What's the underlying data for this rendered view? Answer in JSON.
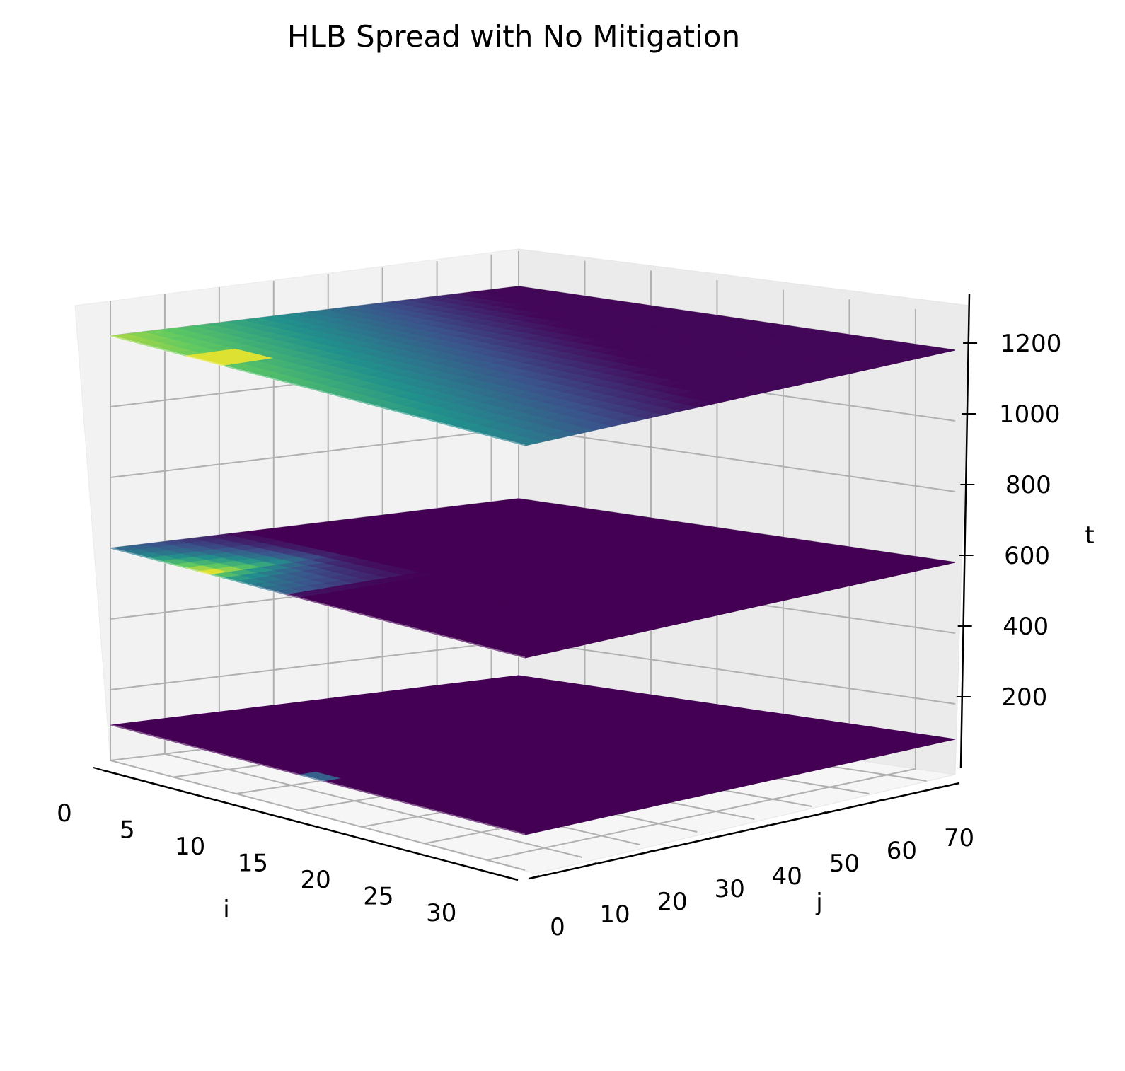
{
  "chart_data": {
    "type": "3d-scatter",
    "title": "HLB Spread with No Mitigation",
    "xlabel": "i",
    "ylabel": "j",
    "zlabel": "t",
    "xlim": [
      0,
      33
    ],
    "ylim": [
      0,
      75
    ],
    "zlim": [
      0,
      1300
    ],
    "x_ticks": [
      "0",
      "5",
      "10",
      "15",
      "20",
      "25",
      "30"
    ],
    "y_ticks": [
      "0",
      "10",
      "20",
      "30",
      "40",
      "50",
      "60",
      "70"
    ],
    "z_ticks": [
      "200",
      "400",
      "600",
      "800",
      "1000",
      "1200"
    ],
    "colormap": "viridis",
    "grid": true,
    "layers": [
      {
        "t": 100,
        "description_hotspot": {
          "i": [
            15,
            16
          ],
          "j": [
            0,
            2
          ]
        }
      },
      {
        "t": 600,
        "front_value_by_i": [
          0.35,
          0.4,
          0.45,
          0.55,
          0.65,
          0.75,
          0.85,
          0.95,
          0.7,
          0.55,
          0.45,
          0.4,
          0.35,
          0.3,
          0.05,
          0,
          0,
          0,
          0,
          0,
          0,
          0,
          0,
          0,
          0,
          0,
          0,
          0,
          0,
          0,
          0,
          0,
          0
        ]
      },
      {
        "t": 1200
      }
    ]
  }
}
